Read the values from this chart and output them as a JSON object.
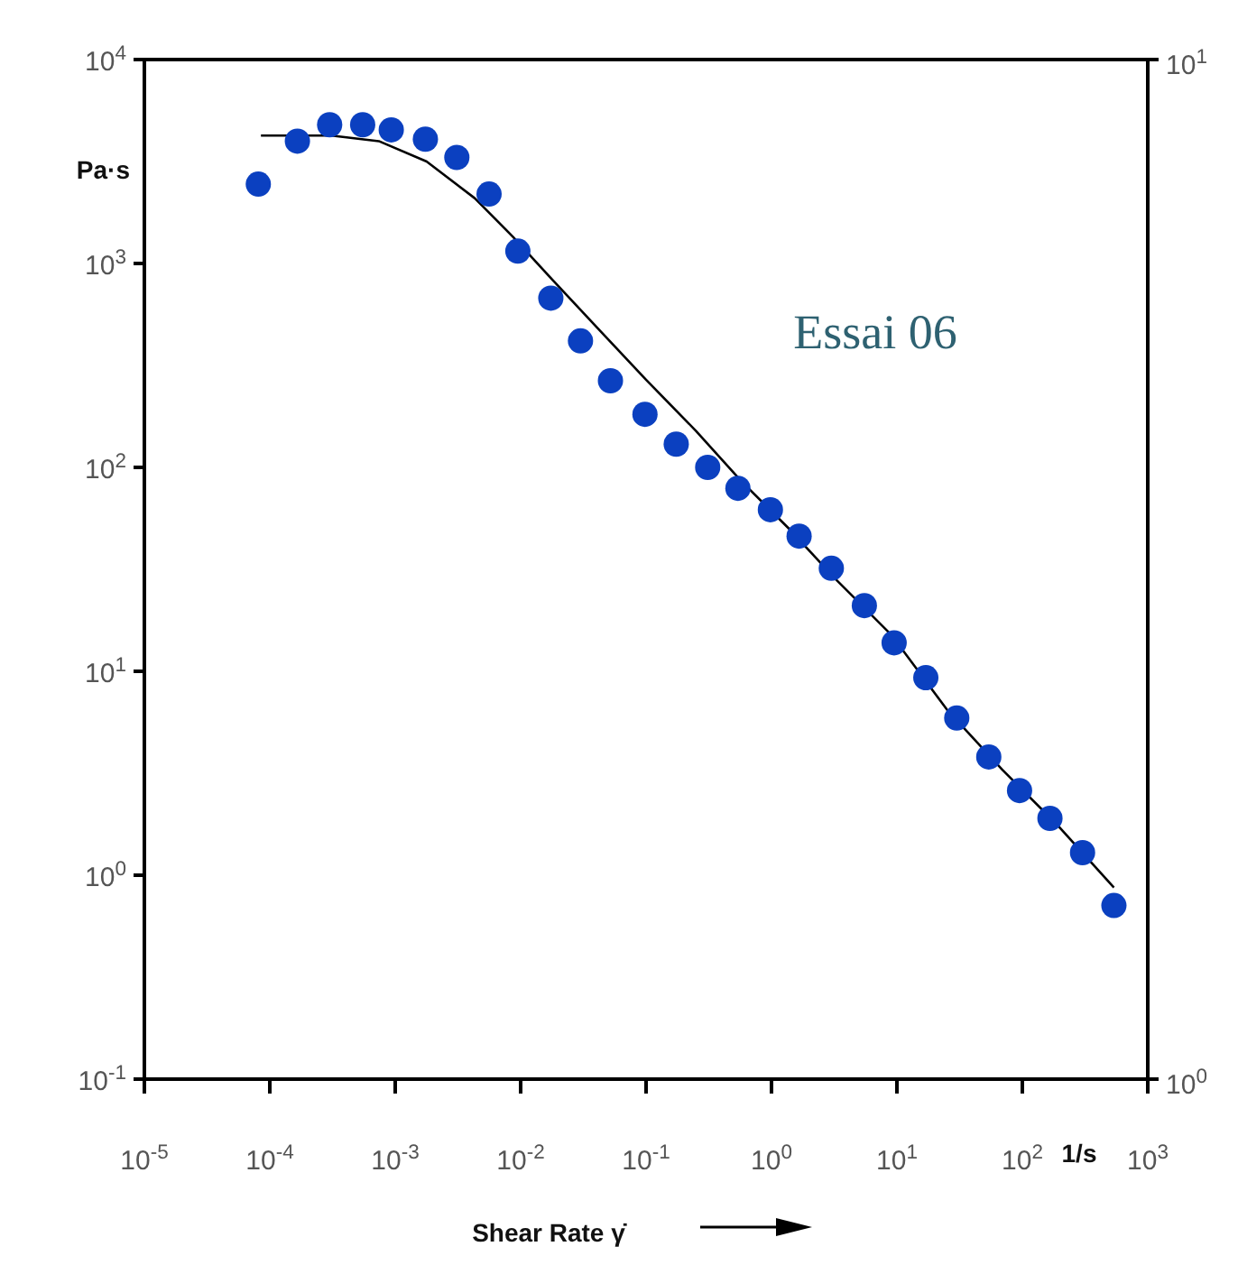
{
  "chart_data": {
    "type": "scatter",
    "xlabel": "Shear Rate γ̇",
    "ylabel": "Pa·s",
    "annotations": [
      "Essai 06",
      "1/s"
    ],
    "log": "xy",
    "xlim": [
      1e-05,
      1000
    ],
    "xticks": [
      {
        "value": 1e-05,
        "label": "10$^{-5}$"
      },
      {
        "value": 0.0001,
        "label": "10$^{-4}$"
      },
      {
        "value": 0.001,
        "label": "10$^{-3}$"
      },
      {
        "value": 0.01,
        "label": "10$^{-2}$"
      },
      {
        "value": 0.1,
        "label": "10$^{-1}$"
      },
      {
        "value": 1,
        "label": "10$^{0}$"
      },
      {
        "value": 10,
        "label": "10$^{1}$"
      },
      {
        "value": 100,
        "label": "10$^{2}$"
      },
      {
        "value": 1000,
        "label": "10$^{3}$"
      }
    ],
    "ylim": [
      0.1,
      10000
    ],
    "yticks": [
      {
        "value": 0.1,
        "label": "10$^{-1}$"
      },
      {
        "value": 1,
        "label": "10$^{0}$"
      },
      {
        "value": 10,
        "label": "10$^{1}$"
      },
      {
        "value": 100,
        "label": "10$^{2}$"
      },
      {
        "value": 1000,
        "label": "10$^{3}$"
      },
      {
        "value": 10000,
        "label": "10$^{4}$"
      }
    ],
    "y2lim": [
      1,
      10
    ],
    "y2ticks": [
      {
        "value": 1,
        "label": "10$^{0}$"
      },
      {
        "value": 10,
        "label": "10$^{1}$"
      }
    ],
    "series": [
      {
        "color": "#0b40c0",
        "marker": "circle",
        "x": [
          8.1e-05,
          0.000166,
          0.0003,
          0.00055,
          0.00093,
          0.00174,
          0.0031,
          0.0056,
          0.0095,
          0.0174,
          0.03,
          0.052,
          0.098,
          0.174,
          0.31,
          0.54,
          0.98,
          1.66,
          3.0,
          5.5,
          9.5,
          17,
          30,
          54,
          95,
          166,
          302,
          537
        ],
        "values": [
          2450,
          3980,
          4790,
          4790,
          4520,
          4070,
          3310,
          2190,
          1150,
          676,
          417,
          266,
          182,
          130,
          100,
          79,
          62,
          46,
          32,
          21,
          13.8,
          9.3,
          5.9,
          3.8,
          2.6,
          1.9,
          1.29,
          0.71
        ]
      },
      {
        "type": "line",
        "color": "#000000",
        "marker": "none",
        "x": [
          8.5e-05,
          0.00031,
          0.00074,
          0.00178,
          0.0043,
          0.0087,
          0.018,
          0.043,
          0.1,
          0.25,
          0.58,
          1.38,
          3.3,
          9.1,
          25,
          69,
          191,
          537
        ],
        "values": [
          4240,
          4240,
          3980,
          3160,
          2090,
          1350,
          830,
          468,
          269,
          151,
          85,
          50,
          28,
          15,
          6.5,
          3.3,
          1.76,
          0.87
        ]
      }
    ]
  }
}
